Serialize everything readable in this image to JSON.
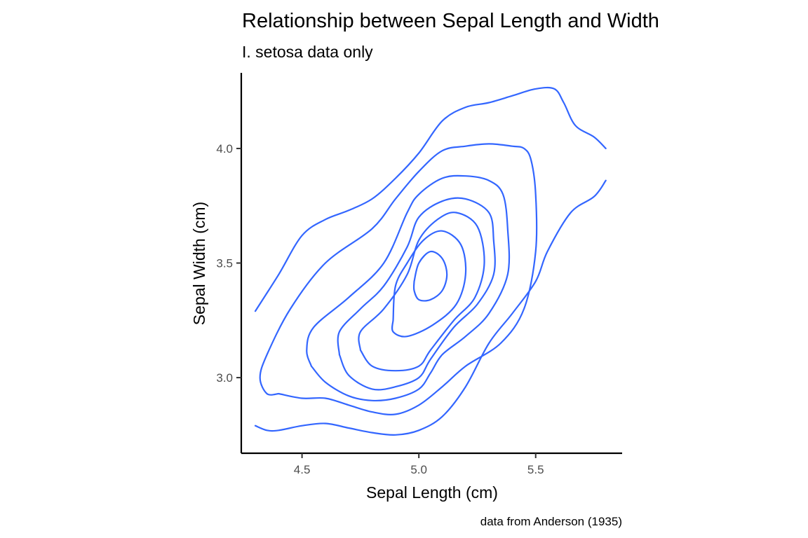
{
  "chart_data": {
    "type": "contour",
    "title": "Relationship between Sepal Length and Width",
    "subtitle": "I. setosa data only",
    "caption": "data from Anderson (1935)",
    "xlabel": "Sepal Length (cm)",
    "ylabel": "Sepal Width (cm)",
    "xlim": [
      4.24,
      5.87
    ],
    "ylim": [
      2.67,
      4.33
    ],
    "x_ticks": [
      4.5,
      5.0,
      5.5
    ],
    "x_tick_labels": [
      "4.5",
      "5.0",
      "5.5"
    ],
    "y_ticks": [
      3.0,
      3.5,
      4.0
    ],
    "y_tick_labels": [
      "3.0",
      "3.5",
      "4.0"
    ],
    "grid": false,
    "colors": {
      "contour": "#3366FF",
      "axis": "#000000",
      "tick_label": "#4d4d4d"
    },
    "series": [
      {
        "level": 1,
        "segments": [
          [
            [
              4.3,
              3.29
            ],
            [
              4.4,
              3.45
            ],
            [
              4.5,
              3.62
            ],
            [
              4.6,
              3.69
            ],
            [
              4.7,
              3.73
            ],
            [
              4.8,
              3.78
            ],
            [
              4.9,
              3.87
            ],
            [
              5.0,
              3.98
            ],
            [
              5.1,
              4.12
            ],
            [
              5.2,
              4.18
            ],
            [
              5.3,
              4.2
            ],
            [
              5.4,
              4.23
            ],
            [
              5.5,
              4.26
            ],
            [
              5.58,
              4.26
            ],
            [
              5.62,
              4.2
            ],
            [
              5.67,
              4.1
            ],
            [
              5.75,
              4.05
            ],
            [
              5.8,
              4.0
            ]
          ],
          [
            [
              4.3,
              2.79
            ],
            [
              4.35,
              2.77
            ],
            [
              4.4,
              2.77
            ],
            [
              4.5,
              2.79
            ],
            [
              4.6,
              2.8
            ],
            [
              4.7,
              2.78
            ],
            [
              4.8,
              2.76
            ],
            [
              4.9,
              2.75
            ],
            [
              5.0,
              2.77
            ],
            [
              5.1,
              2.83
            ],
            [
              5.2,
              2.96
            ],
            [
              5.3,
              3.15
            ],
            [
              5.4,
              3.28
            ],
            [
              5.5,
              3.42
            ],
            [
              5.55,
              3.55
            ],
            [
              5.65,
              3.72
            ],
            [
              5.75,
              3.79
            ],
            [
              5.8,
              3.86
            ]
          ]
        ]
      },
      {
        "level": 2,
        "segments": [
          [
            [
              4.4,
              2.93
            ],
            [
              4.35,
              2.93
            ],
            [
              4.32,
              3.0
            ],
            [
              4.35,
              3.1
            ],
            [
              4.45,
              3.3
            ],
            [
              4.6,
              3.5
            ],
            [
              4.8,
              3.65
            ],
            [
              4.9,
              3.78
            ],
            [
              5.0,
              3.9
            ],
            [
              5.1,
              3.99
            ],
            [
              5.2,
              4.01
            ],
            [
              5.3,
              4.02
            ],
            [
              5.4,
              4.01
            ],
            [
              5.45,
              4.0
            ],
            [
              5.48,
              3.95
            ],
            [
              5.5,
              3.8
            ],
            [
              5.5,
              3.55
            ],
            [
              5.45,
              3.3
            ],
            [
              5.35,
              3.15
            ],
            [
              5.2,
              3.05
            ],
            [
              5.1,
              2.96
            ],
            [
              5.0,
              2.88
            ],
            [
              4.9,
              2.84
            ],
            [
              4.8,
              2.85
            ],
            [
              4.7,
              2.88
            ],
            [
              4.6,
              2.91
            ],
            [
              4.5,
              2.91
            ],
            [
              4.4,
              2.93
            ]
          ]
        ]
      },
      {
        "level": 3,
        "segments": [
          [
            [
              4.54,
              3.05
            ],
            [
              4.52,
              3.12
            ],
            [
              4.55,
              3.22
            ],
            [
              4.7,
              3.35
            ],
            [
              4.85,
              3.5
            ],
            [
              4.95,
              3.72
            ],
            [
              5.0,
              3.8
            ],
            [
              5.1,
              3.87
            ],
            [
              5.2,
              3.88
            ],
            [
              5.3,
              3.86
            ],
            [
              5.36,
              3.8
            ],
            [
              5.38,
              3.65
            ],
            [
              5.38,
              3.45
            ],
            [
              5.3,
              3.28
            ],
            [
              5.2,
              3.18
            ],
            [
              5.1,
              3.1
            ],
            [
              5.05,
              3.02
            ],
            [
              5.0,
              2.95
            ],
            [
              4.9,
              2.91
            ],
            [
              4.8,
              2.9
            ],
            [
              4.7,
              2.92
            ],
            [
              4.6,
              2.98
            ],
            [
              4.54,
              3.05
            ]
          ]
        ]
      },
      {
        "level": 4,
        "segments": [
          [
            [
              4.66,
              3.1
            ],
            [
              4.66,
              3.2
            ],
            [
              4.75,
              3.3
            ],
            [
              4.85,
              3.4
            ],
            [
              4.95,
              3.57
            ],
            [
              5.0,
              3.7
            ],
            [
              5.1,
              3.77
            ],
            [
              5.2,
              3.78
            ],
            [
              5.3,
              3.72
            ],
            [
              5.32,
              3.6
            ],
            [
              5.32,
              3.45
            ],
            [
              5.25,
              3.32
            ],
            [
              5.15,
              3.22
            ],
            [
              5.05,
              3.08
            ],
            [
              5.0,
              3.0
            ],
            [
              4.9,
              2.96
            ],
            [
              4.8,
              2.95
            ],
            [
              4.7,
              3.01
            ],
            [
              4.66,
              3.1
            ]
          ]
        ]
      },
      {
        "level": 5,
        "segments": [
          [
            [
              4.75,
              3.12
            ],
            [
              4.75,
              3.2
            ],
            [
              4.85,
              3.3
            ],
            [
              4.95,
              3.45
            ],
            [
              5.0,
              3.6
            ],
            [
              5.08,
              3.69
            ],
            [
              5.16,
              3.72
            ],
            [
              5.25,
              3.66
            ],
            [
              5.28,
              3.5
            ],
            [
              5.24,
              3.35
            ],
            [
              5.15,
              3.25
            ],
            [
              5.05,
              3.12
            ],
            [
              5.0,
              3.05
            ],
            [
              4.9,
              3.03
            ],
            [
              4.8,
              3.05
            ],
            [
              4.75,
              3.12
            ]
          ]
        ]
      },
      {
        "level": 6,
        "segments": [
          [
            [
              4.89,
              3.25
            ],
            [
              4.9,
              3.4
            ],
            [
              4.95,
              3.5
            ],
            [
              5.02,
              3.6
            ],
            [
              5.1,
              3.64
            ],
            [
              5.18,
              3.58
            ],
            [
              5.2,
              3.45
            ],
            [
              5.16,
              3.32
            ],
            [
              5.06,
              3.23
            ],
            [
              4.95,
              3.18
            ],
            [
              4.89,
              3.2
            ],
            [
              4.89,
              3.25
            ]
          ]
        ]
      },
      {
        "level": 7,
        "segments": [
          [
            [
              4.98,
              3.42
            ],
            [
              5.0,
              3.5
            ],
            [
              5.05,
              3.55
            ],
            [
              5.1,
              3.52
            ],
            [
              5.12,
              3.45
            ],
            [
              5.1,
              3.38
            ],
            [
              5.05,
              3.34
            ],
            [
              5.0,
              3.34
            ],
            [
              4.98,
              3.38
            ],
            [
              4.98,
              3.42
            ]
          ]
        ]
      }
    ]
  }
}
